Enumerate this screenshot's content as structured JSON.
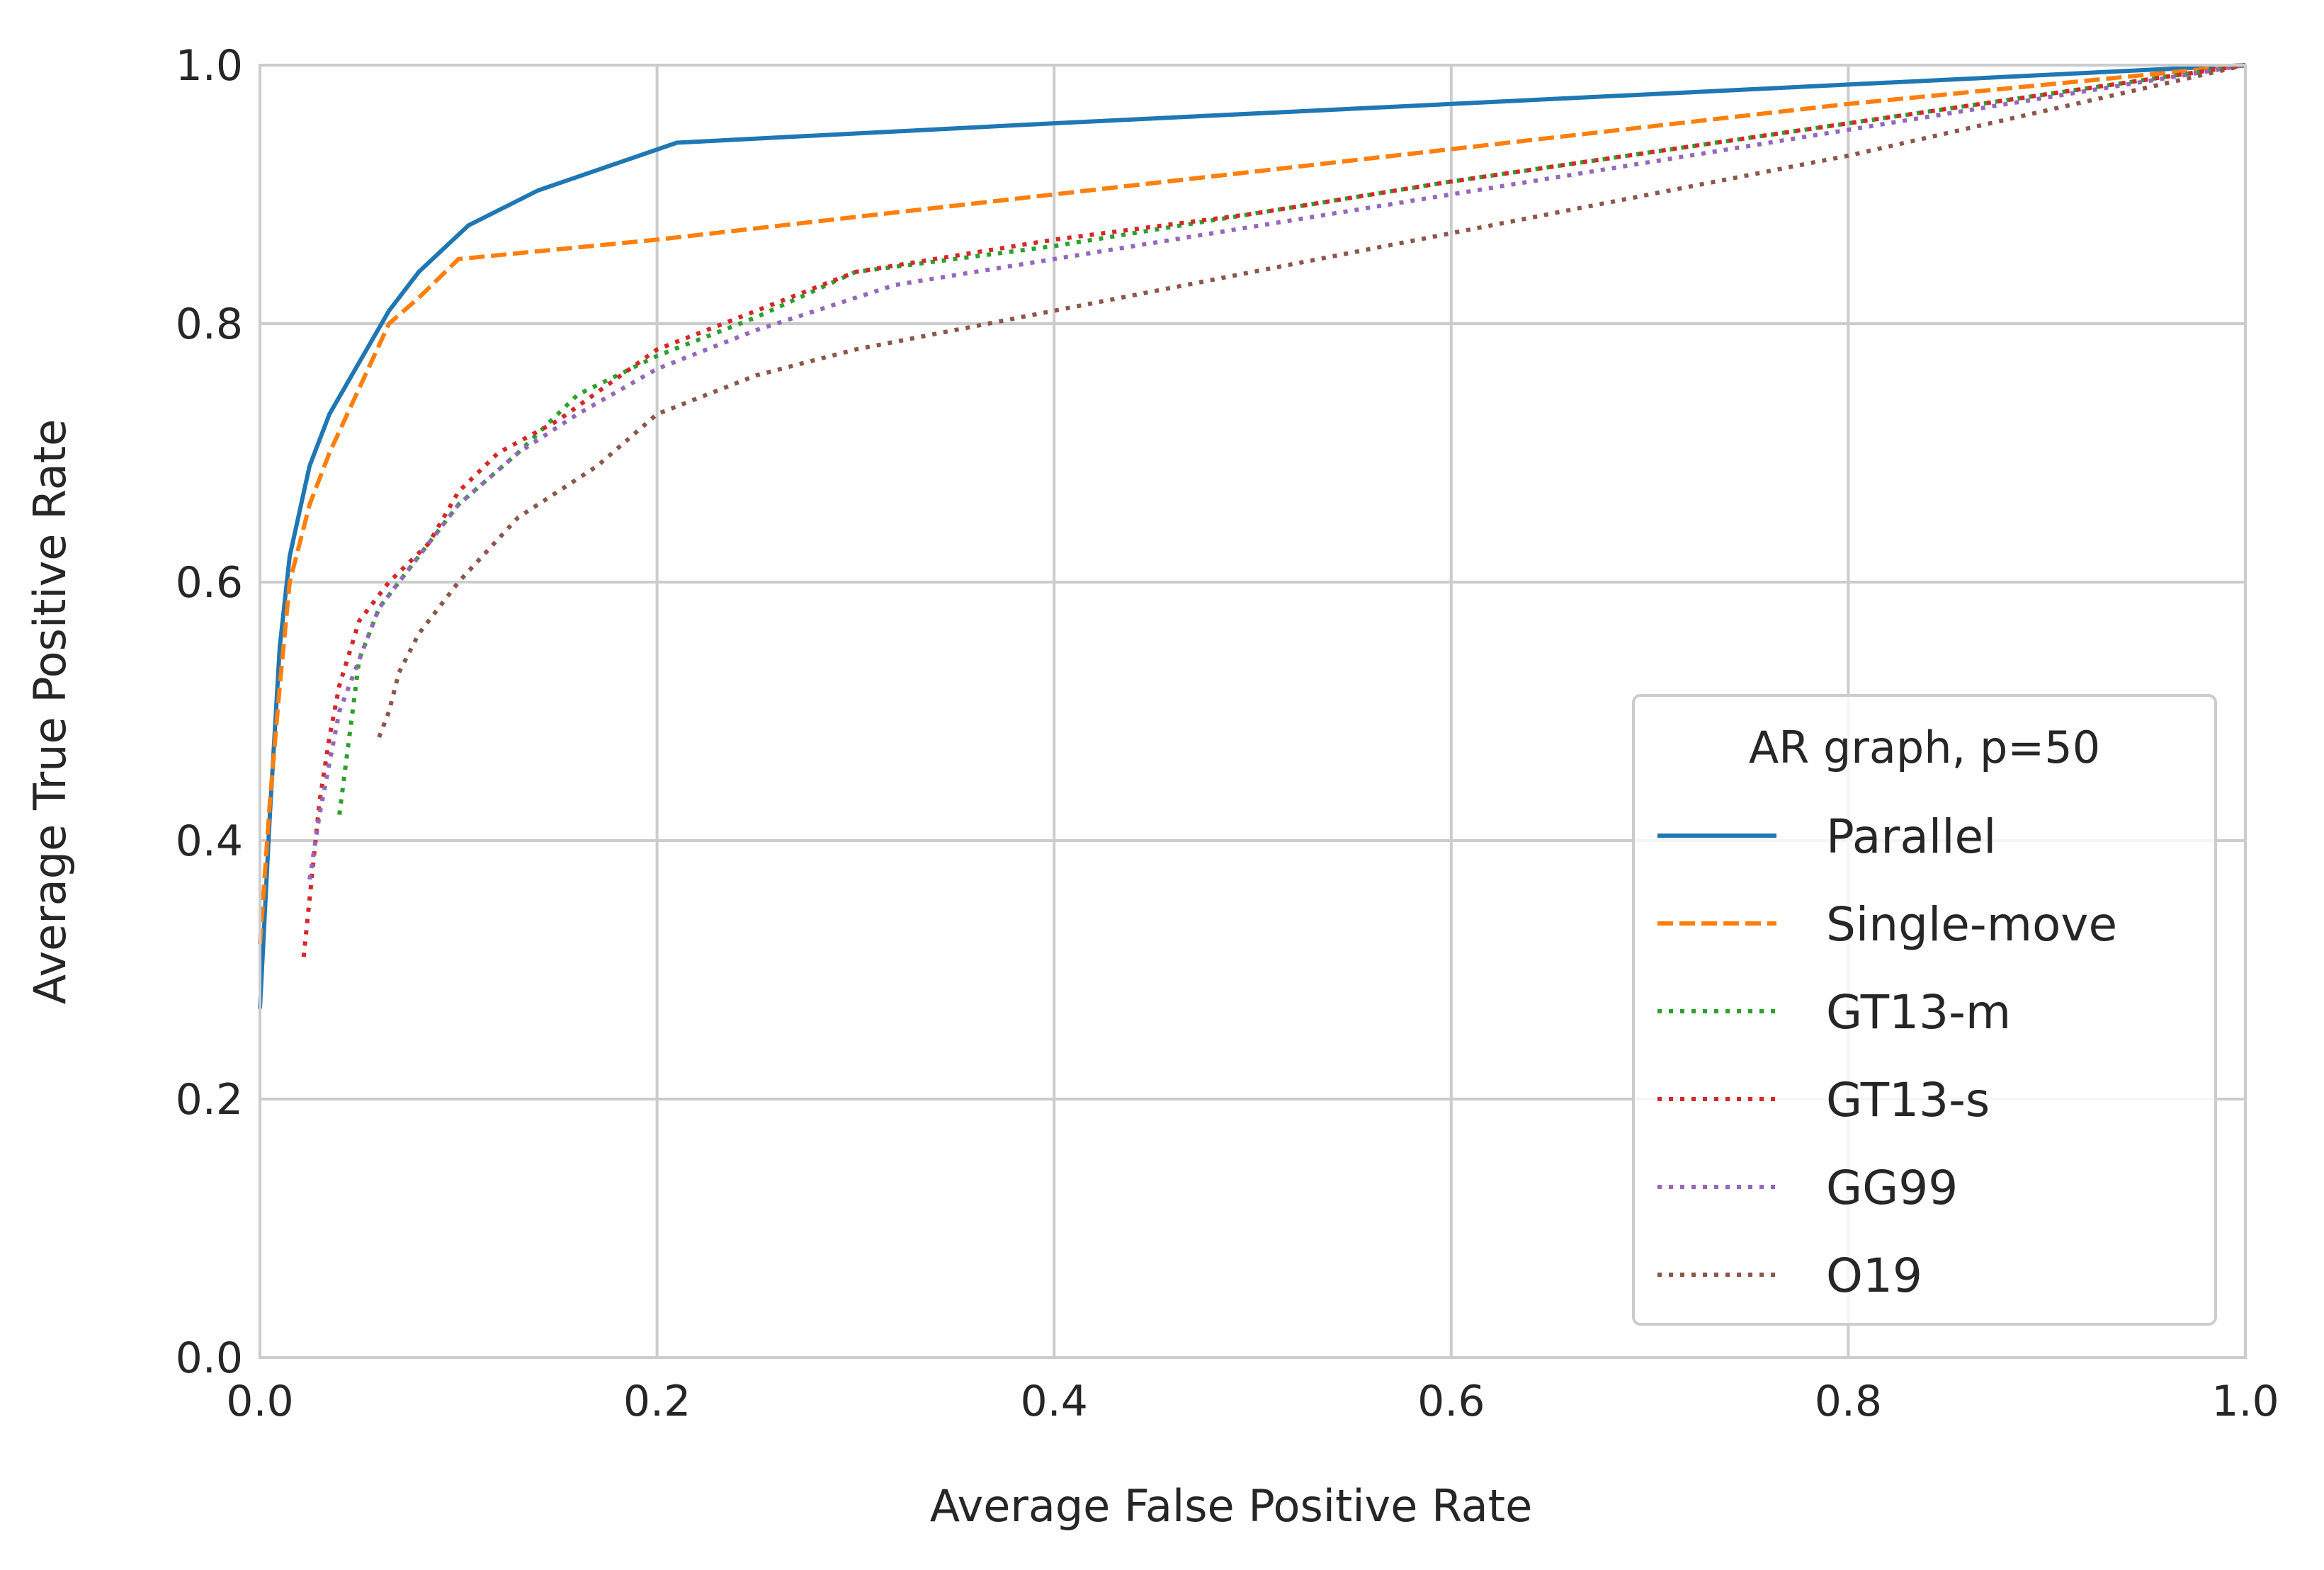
{
  "chart_data": {
    "type": "line",
    "title": "",
    "xlabel": "Average False Positive Rate",
    "ylabel": "Average True Positive Rate",
    "xlim": [
      0.0,
      1.0
    ],
    "ylim": [
      0.0,
      1.0
    ],
    "x_ticks": [
      "0.0",
      "0.2",
      "0.4",
      "0.6",
      "0.8",
      "1.0"
    ],
    "y_ticks": [
      "0.0",
      "0.2",
      "0.4",
      "0.6",
      "0.8",
      "1.0"
    ],
    "grid": true,
    "legend": {
      "title": "AR graph, p=50",
      "placement": "lower-right"
    },
    "series": [
      {
        "name": "Parallel",
        "color": "#1f77b4",
        "style": "solid",
        "x": [
          0.0,
          0.005,
          0.01,
          0.015,
          0.025,
          0.035,
          0.05,
          0.065,
          0.08,
          0.105,
          0.14,
          0.21,
          0.4,
          0.6,
          0.8,
          1.0
        ],
        "y": [
          0.27,
          0.42,
          0.55,
          0.62,
          0.69,
          0.73,
          0.77,
          0.81,
          0.84,
          0.876,
          0.903,
          0.94,
          0.955,
          0.97,
          0.985,
          1.0
        ]
      },
      {
        "name": "Single-move",
        "color": "#ff7f0e",
        "style": "dashed",
        "x": [
          0.0,
          0.005,
          0.01,
          0.015,
          0.025,
          0.035,
          0.05,
          0.065,
          0.08,
          0.1,
          0.2,
          0.4,
          0.6,
          0.8,
          1.0
        ],
        "y": [
          0.32,
          0.43,
          0.52,
          0.6,
          0.66,
          0.7,
          0.75,
          0.8,
          0.82,
          0.85,
          0.865,
          0.9,
          0.935,
          0.97,
          1.0
        ]
      },
      {
        "name": "GT13-m",
        "color": "#2ca02c",
        "style": "dotted",
        "x": [
          0.04,
          0.045,
          0.05,
          0.06,
          0.08,
          0.1,
          0.13,
          0.16,
          0.2,
          0.25,
          0.3,
          0.4,
          0.5,
          0.6,
          0.8,
          1.0
        ],
        "y": [
          0.42,
          0.48,
          0.54,
          0.58,
          0.62,
          0.66,
          0.7,
          0.745,
          0.775,
          0.805,
          0.84,
          0.86,
          0.885,
          0.91,
          0.955,
          1.0
        ]
      },
      {
        "name": "GT13-s",
        "color": "#d62728",
        "style": "dotted",
        "x": [
          0.022,
          0.026,
          0.03,
          0.035,
          0.04,
          0.05,
          0.065,
          0.085,
          0.1,
          0.12,
          0.15,
          0.2,
          0.25,
          0.3,
          0.4,
          0.5,
          0.6,
          0.8,
          1.0
        ],
        "y": [
          0.31,
          0.37,
          0.43,
          0.48,
          0.52,
          0.57,
          0.6,
          0.63,
          0.67,
          0.7,
          0.725,
          0.78,
          0.81,
          0.84,
          0.865,
          0.885,
          0.91,
          0.955,
          1.0
        ]
      },
      {
        "name": "GG99",
        "color": "#9467bd",
        "style": "dotted",
        "x": [
          0.025,
          0.03,
          0.035,
          0.04,
          0.05,
          0.06,
          0.08,
          0.1,
          0.13,
          0.16,
          0.2,
          0.25,
          0.32,
          0.4,
          0.5,
          0.6,
          0.8,
          1.0
        ],
        "y": [
          0.37,
          0.42,
          0.46,
          0.5,
          0.54,
          0.58,
          0.62,
          0.66,
          0.7,
          0.73,
          0.765,
          0.795,
          0.83,
          0.85,
          0.875,
          0.9,
          0.95,
          1.0
        ]
      },
      {
        "name": "O19",
        "color": "#8c564b",
        "style": "dotted",
        "x": [
          0.06,
          0.065,
          0.07,
          0.08,
          0.1,
          0.13,
          0.17,
          0.2,
          0.25,
          0.3,
          0.4,
          0.5,
          0.6,
          0.8,
          1.0
        ],
        "y": [
          0.48,
          0.5,
          0.53,
          0.56,
          0.6,
          0.65,
          0.69,
          0.73,
          0.76,
          0.78,
          0.81,
          0.84,
          0.87,
          0.93,
          1.0
        ]
      }
    ]
  }
}
